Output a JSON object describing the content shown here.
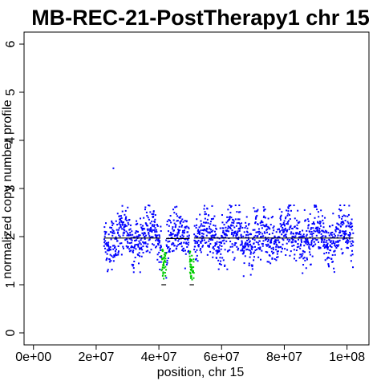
{
  "chart_data": {
    "type": "scatter",
    "title": "MB-REC-21-PostTherapy1 chr 15",
    "xlabel": "position, chr 15",
    "ylabel": "normalized copy number profile",
    "xlim": [
      -3000000,
      107000000
    ],
    "ylim": [
      -0.25,
      6.25
    ],
    "x_ticks": [
      0,
      20000000,
      40000000,
      60000000,
      80000000,
      100000000
    ],
    "x_tick_labels": [
      "0e+00",
      "2e+07",
      "4e+07",
      "6e+07",
      "8e+07",
      "1e+08"
    ],
    "y_ticks": [
      0,
      1,
      2,
      3,
      4,
      5,
      6
    ],
    "y_tick_labels": [
      "0",
      "1",
      "2",
      "3",
      "4",
      "5",
      "6"
    ],
    "grid": false,
    "colors": {
      "normal": "#0000ff",
      "loss": "#00cc00",
      "segment": "#000000"
    },
    "series": [
      {
        "color": "#0000ff",
        "x_range": [
          22500000,
          102000000
        ],
        "mean": 2.0,
        "spread": 0.45,
        "count": 1600,
        "outliers": [
          {
            "x": 25500000,
            "y": 3.42
          }
        ]
      },
      {
        "color": "#00cc00",
        "regions": [
          {
            "x_range": [
              40800000,
              42300000
            ],
            "y_range": [
              1.1,
              1.75
            ]
          },
          {
            "x_range": [
              49800000,
              51200000
            ],
            "y_range": [
              1.05,
              1.7
            ]
          }
        ]
      }
    ],
    "segments": [
      {
        "x0": 22500000,
        "x1": 40500000,
        "y": 1.97
      },
      {
        "x0": 40800000,
        "x1": 42300000,
        "y": 1.0
      },
      {
        "x0": 42300000,
        "x1": 49800000,
        "y": 1.96
      },
      {
        "x0": 49800000,
        "x1": 51200000,
        "y": 1.0
      },
      {
        "x0": 51200000,
        "x1": 102000000,
        "y": 1.97
      }
    ]
  }
}
